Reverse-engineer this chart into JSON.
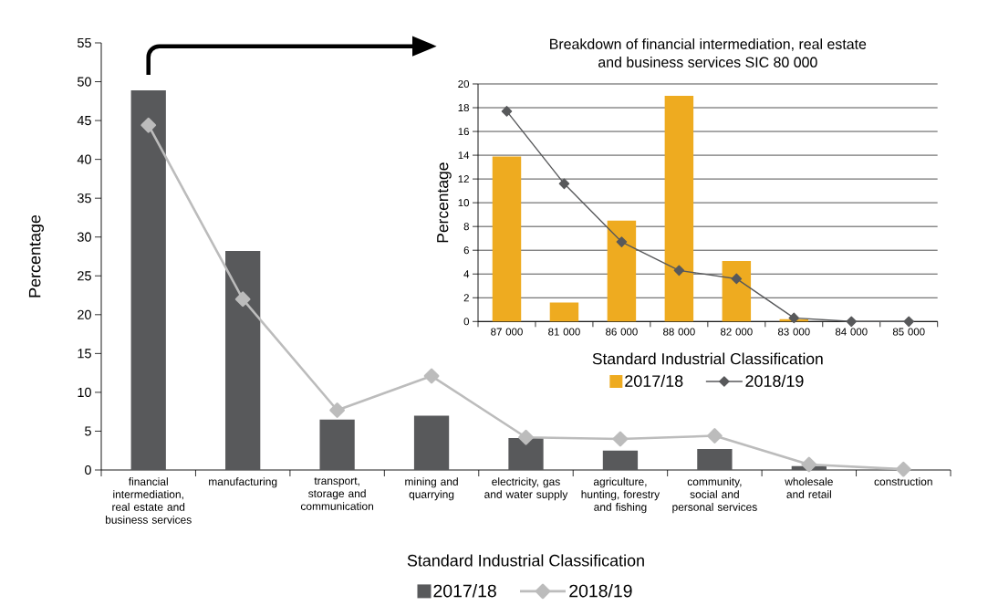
{
  "chart_data": [
    {
      "type": "bar",
      "xlabel": "Standard Industrial Classification",
      "ylabel": "Percentage",
      "categories": [
        "financial intermediation, real estate and business services",
        "manufacturing",
        "transport, storage and communication",
        "mining and quarrying",
        "electricity, gas and water supply",
        "agriculture, hunting, forestry and fishing",
        "community, social and personal services",
        "wholesale and retail",
        "construction"
      ],
      "series": [
        {
          "name": "2017/18",
          "color": "#58595b",
          "values": [
            48.9,
            28.2,
            6.5,
            7.0,
            4.1,
            2.5,
            2.7,
            0.5,
            0
          ]
        },
        {
          "name": "2018/19",
          "type": "line",
          "color": "#bcbcbc",
          "values": [
            44.4,
            22.0,
            7.7,
            12.1,
            4.2,
            4.0,
            4.4,
            0.7,
            0.1
          ]
        }
      ],
      "ylim": [
        0,
        55
      ],
      "yticks": [
        0,
        5,
        10,
        15,
        20,
        25,
        30,
        35,
        40,
        45,
        50,
        55
      ],
      "marker": "diamond",
      "legend": "bottom"
    },
    {
      "type": "bar",
      "title": "Breakdown of financial intermediation, real estate and business services SIC 80 000",
      "xlabel": "Standard Industrial Classification",
      "ylabel": "Percentage",
      "categories": [
        "87 000",
        "81 000",
        "86 000",
        "88 000",
        "82 000",
        "83 000",
        "84 000",
        "85 000"
      ],
      "series": [
        {
          "name": "2017/18",
          "color": "#eeab20",
          "values": [
            13.9,
            1.6,
            8.5,
            19.0,
            5.1,
            0.2,
            0,
            0
          ]
        },
        {
          "name": "2018/19",
          "type": "line",
          "color": "#58595b",
          "values": [
            17.7,
            11.6,
            6.7,
            4.3,
            3.6,
            0.3,
            0,
            0
          ]
        }
      ],
      "ylim": [
        0,
        20
      ],
      "yticks": [
        0,
        2,
        4,
        6,
        8,
        10,
        12,
        14,
        16,
        18,
        20
      ],
      "grid": "y",
      "marker": "diamond",
      "legend": "bottom"
    }
  ]
}
